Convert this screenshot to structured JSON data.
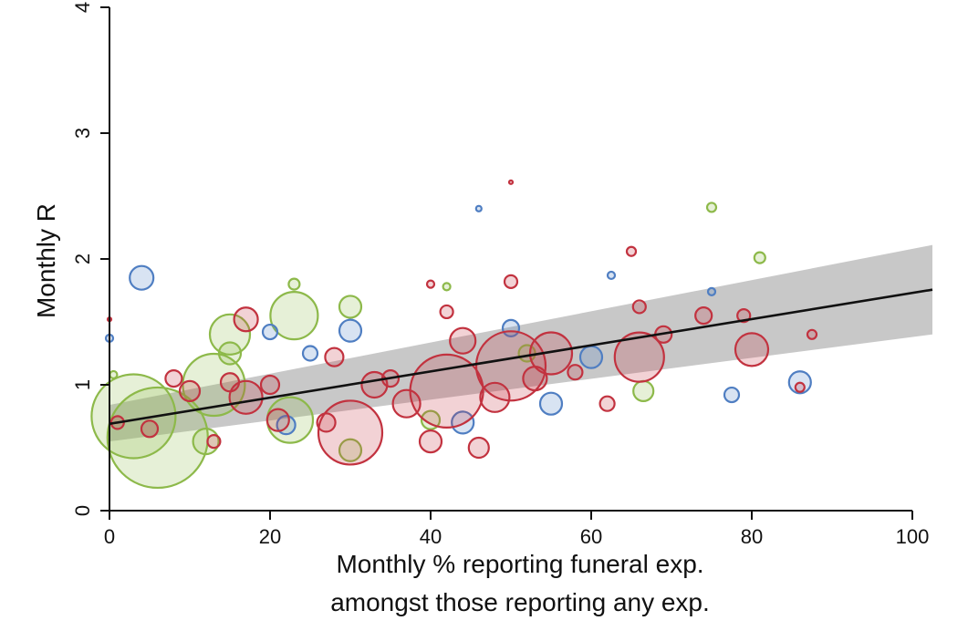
{
  "chart_data": {
    "type": "scatter",
    "title": "",
    "xlabel_lines": [
      "Monthly % reporting funeral exp.",
      "amongst those reporting any exp."
    ],
    "ylabel": "Monthly R",
    "xlim": [
      0,
      100
    ],
    "ylim": [
      0,
      4
    ],
    "x_ticks": [
      0,
      20,
      40,
      60,
      80,
      100
    ],
    "y_ticks": [
      0,
      1,
      2,
      3,
      4
    ],
    "grid": false,
    "legend": "none",
    "colors": {
      "green": "#8db94a",
      "blue": "#4f7ec2",
      "red": "#c2323f",
      "fit_line": "#111111",
      "band": "#9a9a9a"
    },
    "fit": {
      "x": [
        0,
        100
      ],
      "y": [
        0.69,
        1.73
      ],
      "ci_lower": [
        0.55,
        1.38
      ],
      "ci_upper": [
        0.84,
        2.08
      ]
    },
    "points": [
      {
        "x": 6,
        "y": 0.58,
        "size": 55,
        "color": "green"
      },
      {
        "x": 3,
        "y": 0.75,
        "size": 46,
        "color": "green"
      },
      {
        "x": 13,
        "y": 1.0,
        "size": 34,
        "color": "green"
      },
      {
        "x": 22.5,
        "y": 0.72,
        "size": 25,
        "color": "green"
      },
      {
        "x": 23,
        "y": 1.55,
        "size": 26,
        "color": "green"
      },
      {
        "x": 15,
        "y": 1.4,
        "size": 22,
        "color": "green"
      },
      {
        "x": 30,
        "y": 1.62,
        "size": 12,
        "color": "green"
      },
      {
        "x": 23,
        "y": 1.8,
        "size": 6,
        "color": "green"
      },
      {
        "x": 12,
        "y": 0.55,
        "size": 14,
        "color": "green"
      },
      {
        "x": 30,
        "y": 0.48,
        "size": 12,
        "color": "green"
      },
      {
        "x": 15,
        "y": 1.25,
        "size": 12,
        "color": "green"
      },
      {
        "x": 42,
        "y": 1.78,
        "size": 4,
        "color": "green"
      },
      {
        "x": 52,
        "y": 1.25,
        "size": 9,
        "color": "green"
      },
      {
        "x": 66.5,
        "y": 0.95,
        "size": 11,
        "color": "green"
      },
      {
        "x": 75,
        "y": 2.41,
        "size": 5,
        "color": "green"
      },
      {
        "x": 81,
        "y": 2.01,
        "size": 6,
        "color": "green"
      },
      {
        "x": 0.5,
        "y": 1.08,
        "size": 4,
        "color": "green"
      },
      {
        "x": 40,
        "y": 0.72,
        "size": 10,
        "color": "green"
      },
      {
        "x": 4,
        "y": 1.85,
        "size": 13,
        "color": "blue"
      },
      {
        "x": 20,
        "y": 1.42,
        "size": 8,
        "color": "blue"
      },
      {
        "x": 30,
        "y": 1.43,
        "size": 12,
        "color": "blue"
      },
      {
        "x": 50,
        "y": 1.45,
        "size": 9,
        "color": "blue"
      },
      {
        "x": 60,
        "y": 1.22,
        "size": 12,
        "color": "blue"
      },
      {
        "x": 55,
        "y": 0.85,
        "size": 12,
        "color": "blue"
      },
      {
        "x": 77.5,
        "y": 0.92,
        "size": 8,
        "color": "blue"
      },
      {
        "x": 86,
        "y": 1.02,
        "size": 12,
        "color": "blue"
      },
      {
        "x": 75,
        "y": 1.74,
        "size": 4,
        "color": "blue"
      },
      {
        "x": 62.5,
        "y": 1.87,
        "size": 4,
        "color": "blue"
      },
      {
        "x": 46,
        "y": 2.4,
        "size": 3,
        "color": "blue"
      },
      {
        "x": 25,
        "y": 1.25,
        "size": 8,
        "color": "blue"
      },
      {
        "x": 0,
        "y": 1.37,
        "size": 4,
        "color": "blue"
      },
      {
        "x": 22,
        "y": 0.68,
        "size": 10,
        "color": "blue"
      },
      {
        "x": 44,
        "y": 0.7,
        "size": 12,
        "color": "blue"
      },
      {
        "x": 30,
        "y": 0.62,
        "size": 35,
        "color": "red"
      },
      {
        "x": 42,
        "y": 0.95,
        "size": 40,
        "color": "red"
      },
      {
        "x": 50,
        "y": 1.15,
        "size": 38,
        "color": "red"
      },
      {
        "x": 66,
        "y": 1.22,
        "size": 27,
        "color": "red"
      },
      {
        "x": 55,
        "y": 1.25,
        "size": 23,
        "color": "red"
      },
      {
        "x": 80,
        "y": 1.28,
        "size": 18,
        "color": "red"
      },
      {
        "x": 17,
        "y": 0.9,
        "size": 18,
        "color": "red"
      },
      {
        "x": 17,
        "y": 1.52,
        "size": 13,
        "color": "red"
      },
      {
        "x": 5,
        "y": 0.65,
        "size": 9,
        "color": "red"
      },
      {
        "x": 10,
        "y": 0.95,
        "size": 11,
        "color": "red"
      },
      {
        "x": 21,
        "y": 0.72,
        "size": 12,
        "color": "red"
      },
      {
        "x": 27,
        "y": 0.7,
        "size": 10,
        "color": "red"
      },
      {
        "x": 33,
        "y": 1.0,
        "size": 14,
        "color": "red"
      },
      {
        "x": 37,
        "y": 0.85,
        "size": 15,
        "color": "red"
      },
      {
        "x": 44,
        "y": 1.35,
        "size": 14,
        "color": "red"
      },
      {
        "x": 48,
        "y": 0.9,
        "size": 16,
        "color": "red"
      },
      {
        "x": 53,
        "y": 1.05,
        "size": 13,
        "color": "red"
      },
      {
        "x": 62,
        "y": 0.85,
        "size": 8,
        "color": "red"
      },
      {
        "x": 66,
        "y": 1.62,
        "size": 7,
        "color": "red"
      },
      {
        "x": 69,
        "y": 1.4,
        "size": 9,
        "color": "red"
      },
      {
        "x": 74,
        "y": 1.55,
        "size": 9,
        "color": "red"
      },
      {
        "x": 79,
        "y": 1.55,
        "size": 7,
        "color": "red"
      },
      {
        "x": 87.5,
        "y": 1.4,
        "size": 5,
        "color": "red"
      },
      {
        "x": 86,
        "y": 0.98,
        "size": 5,
        "color": "red"
      },
      {
        "x": 65,
        "y": 2.06,
        "size": 5,
        "color": "red"
      },
      {
        "x": 50,
        "y": 2.61,
        "size": 2,
        "color": "red"
      },
      {
        "x": 50,
        "y": 1.82,
        "size": 7,
        "color": "red"
      },
      {
        "x": 40,
        "y": 1.8,
        "size": 4,
        "color": "red"
      },
      {
        "x": 42,
        "y": 1.58,
        "size": 7,
        "color": "red"
      },
      {
        "x": 1,
        "y": 0.7,
        "size": 7,
        "color": "red"
      },
      {
        "x": 0,
        "y": 1.52,
        "size": 2,
        "color": "red"
      },
      {
        "x": 13,
        "y": 0.55,
        "size": 7,
        "color": "red"
      },
      {
        "x": 20,
        "y": 1.0,
        "size": 10,
        "color": "red"
      },
      {
        "x": 35,
        "y": 1.05,
        "size": 9,
        "color": "red"
      },
      {
        "x": 46,
        "y": 0.5,
        "size": 11,
        "color": "red"
      },
      {
        "x": 40,
        "y": 0.55,
        "size": 12,
        "color": "red"
      },
      {
        "x": 58,
        "y": 1.1,
        "size": 8,
        "color": "red"
      },
      {
        "x": 28,
        "y": 1.22,
        "size": 10,
        "color": "red"
      },
      {
        "x": 15,
        "y": 1.02,
        "size": 10,
        "color": "red"
      },
      {
        "x": 8,
        "y": 1.05,
        "size": 9,
        "color": "red"
      }
    ]
  }
}
